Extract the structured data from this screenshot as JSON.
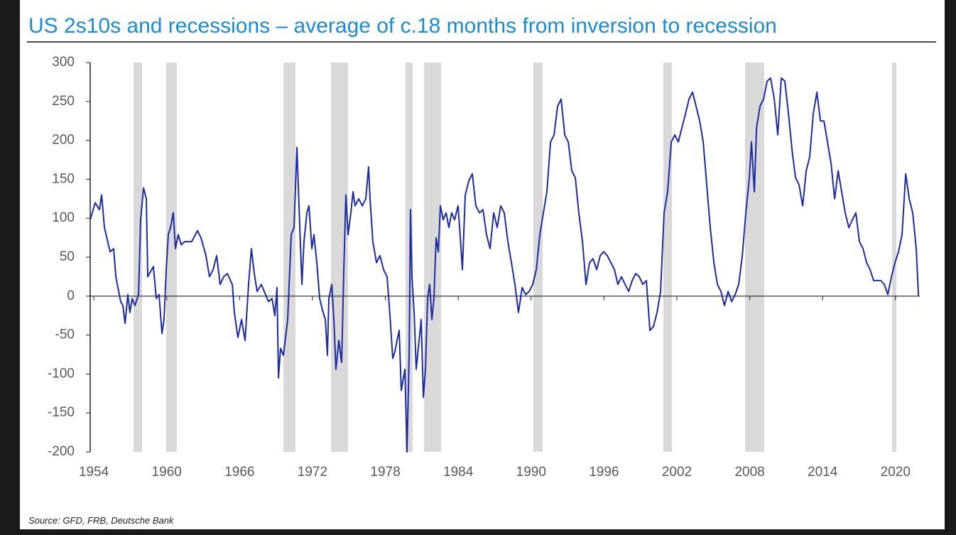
{
  "chart_data": {
    "type": "line",
    "title": "US 2s10s and recessions – average of c.18 months from inversion to recession",
    "source": "Source: GFD, FRB, Deutsche Bank",
    "color": "#1c2ca0",
    "recession_color": "#d9d9d9",
    "xlim": [
      1953.7,
      2022
    ],
    "ylim": [
      -200,
      300
    ],
    "xticks": [
      1954,
      1960,
      1966,
      1972,
      1978,
      1984,
      1990,
      1996,
      2002,
      2008,
      2014,
      2020
    ],
    "yticks": [
      -200,
      -150,
      -100,
      -50,
      0,
      50,
      100,
      150,
      200,
      250,
      300
    ],
    "recessions": [
      [
        1957.27,
        1957.97
      ],
      [
        1959.96,
        1960.83
      ],
      [
        1969.61,
        1970.6
      ],
      [
        1973.52,
        1974.93
      ],
      [
        1979.66,
        1980.25
      ],
      [
        1981.19,
        1982.59
      ],
      [
        1990.19,
        1990.95
      ],
      [
        2000.89,
        2001.6
      ],
      [
        2007.62,
        2009.2
      ],
      [
        2019.72,
        2020.07
      ]
    ],
    "x": [
      1953.7,
      1954.11,
      1954.46,
      1954.64,
      1954.87,
      1955.34,
      1955.63,
      1955.81,
      1956.21,
      1956.39,
      1956.57,
      1956.8,
      1956.97,
      1957.15,
      1957.38,
      1957.68,
      1957.85,
      1958.09,
      1958.32,
      1958.44,
      1958.9,
      1959.14,
      1959.37,
      1959.61,
      1959.78,
      1959.96,
      1960.13,
      1960.31,
      1960.54,
      1960.72,
      1960.95,
      1961.19,
      1961.48,
      1962.06,
      1962.53,
      1962.82,
      1963.23,
      1963.52,
      1963.82,
      1964.11,
      1964.4,
      1964.69,
      1964.99,
      1965.4,
      1965.57,
      1965.86,
      1966.16,
      1966.45,
      1966.74,
      1966.97,
      1967.21,
      1967.44,
      1967.79,
      1968.03,
      1968.38,
      1968.67,
      1968.9,
      1969.08,
      1969.2,
      1969.37,
      1969.61,
      1969.96,
      1970.25,
      1970.48,
      1970.72,
      1970.89,
      1971.13,
      1971.3,
      1971.54,
      1971.71,
      1971.95,
      1972.12,
      1972.36,
      1972.59,
      1972.88,
      1973.06,
      1973.23,
      1973.35,
      1973.59,
      1973.76,
      1973.93,
      1974.17,
      1974.4,
      1974.58,
      1974.75,
      1974.93,
      1975.16,
      1975.34,
      1975.51,
      1975.81,
      1976.1,
      1976.39,
      1976.62,
      1976.74,
      1976.97,
      1977.27,
      1977.56,
      1977.85,
      1978.14,
      1978.32,
      1978.44,
      1978.61,
      1978.79,
      1978.96,
      1979.14,
      1979.31,
      1979.61,
      1979.78,
      1979.96,
      1980.07,
      1980.19,
      1980.37,
      1980.54,
      1980.78,
      1980.95,
      1981.13,
      1981.3,
      1981.48,
      1981.65,
      1981.83,
      1982.0,
      1982.18,
      1982.36,
      1982.53,
      1982.76,
      1983.0,
      1983.23,
      1983.46,
      1983.7,
      1983.99,
      1984.17,
      1984.34,
      1984.58,
      1984.87,
      1985.16,
      1985.45,
      1985.75,
      1986.04,
      1986.33,
      1986.62,
      1986.92,
      1987.21,
      1987.5,
      1987.79,
      1988.09,
      1988.38,
      1988.67,
      1988.96,
      1989.26,
      1989.55,
      1989.84,
      1990.13,
      1990.43,
      1990.72,
      1991.01,
      1991.3,
      1991.6,
      1991.89,
      1992.18,
      1992.47,
      1992.77,
      1993.06,
      1993.35,
      1993.64,
      1993.93,
      1994.23,
      1994.52,
      1994.81,
      1995.1,
      1995.4,
      1995.69,
      1995.98,
      1996.27,
      1996.57,
      1996.86,
      1997.15,
      1997.44,
      1997.74,
      1998.03,
      1998.32,
      1998.61,
      1998.9,
      1999.2,
      1999.49,
      1999.78,
      2000.07,
      2000.37,
      2000.66,
      2000.95,
      2001.24,
      2001.54,
      2001.83,
      2002.12,
      2002.41,
      2002.71,
      2003.0,
      2003.29,
      2003.58,
      2003.88,
      2004.17,
      2004.46,
      2004.75,
      2005.05,
      2005.34,
      2005.63,
      2005.92,
      2006.22,
      2006.51,
      2006.8,
      2007.09,
      2007.39,
      2007.68,
      2007.97,
      2008.14,
      2008.38,
      2008.56,
      2008.85,
      2009.14,
      2009.43,
      2009.72,
      2010.02,
      2010.31,
      2010.6,
      2010.89,
      2011.19,
      2011.48,
      2011.77,
      2012.06,
      2012.36,
      2012.65,
      2012.94,
      2013.23,
      2013.53,
      2013.82,
      2014.11,
      2014.4,
      2014.7,
      2014.99,
      2015.28,
      2015.57,
      2015.86,
      2016.16,
      2016.45,
      2016.74,
      2017.03,
      2017.33,
      2017.62,
      2017.91,
      2018.2,
      2018.5,
      2018.79,
      2019.08,
      2019.37,
      2019.67,
      2019.96,
      2020.25,
      2020.54,
      2020.84,
      2021.13,
      2021.42,
      2021.71,
      2021.89
    ],
    "values": [
      98,
      120,
      111,
      130,
      88,
      57,
      61,
      25,
      -7,
      -12,
      -35,
      2,
      -21,
      -3,
      -12,
      2,
      98,
      139,
      125,
      25,
      38,
      -3,
      2,
      -48,
      -30,
      34,
      79,
      88,
      107,
      61,
      79,
      66,
      70,
      70,
      84,
      75,
      52,
      25,
      34,
      52,
      15,
      25,
      29,
      15,
      -21,
      -53,
      -30,
      -57,
      15,
      61,
      29,
      6,
      15,
      6,
      -7,
      -3,
      -25,
      11,
      -105,
      -67,
      -76,
      -30,
      79,
      88,
      191,
      116,
      15,
      70,
      107,
      116,
      61,
      79,
      43,
      -3,
      -21,
      -30,
      -76,
      -3,
      15,
      -30,
      -94,
      -57,
      -85,
      34,
      130,
      79,
      107,
      134,
      116,
      125,
      116,
      125,
      166,
      125,
      70,
      43,
      52,
      34,
      25,
      -12,
      -39,
      -80,
      -71,
      -57,
      -44,
      -121,
      -94,
      -200,
      -76,
      111,
      25,
      -21,
      -94,
      -57,
      -30,
      -130,
      -94,
      -3,
      15,
      -30,
      -3,
      75,
      57,
      116,
      98,
      107,
      88,
      107,
      98,
      116,
      75,
      34,
      130,
      148,
      157,
      116,
      107,
      111,
      79,
      61,
      107,
      88,
      116,
      107,
      70,
      43,
      15,
      -21,
      11,
      2,
      6,
      15,
      34,
      79,
      107,
      134,
      198,
      207,
      244,
      253,
      207,
      198,
      161,
      152,
      107,
      70,
      15,
      43,
      48,
      34,
      52,
      57,
      52,
      43,
      34,
      15,
      25,
      15,
      6,
      20,
      29,
      25,
      15,
      20,
      -44,
      -39,
      -21,
      6,
      107,
      134,
      198,
      207,
      198,
      216,
      234,
      253,
      262,
      244,
      225,
      198,
      143,
      88,
      43,
      15,
      6,
      -12,
      6,
      -7,
      2,
      15,
      52,
      107,
      152,
      198,
      134,
      216,
      244,
      253,
      276,
      280,
      253,
      207,
      280,
      276,
      234,
      188,
      152,
      143,
      116,
      161,
      179,
      234,
      262,
      225,
      225,
      198,
      170,
      125,
      161,
      134,
      107,
      88,
      98,
      107,
      70,
      61,
      43,
      34,
      20,
      20,
      20,
      15,
      2,
      25,
      43,
      57,
      79,
      157,
      125,
      107,
      61,
      0
    ]
  }
}
